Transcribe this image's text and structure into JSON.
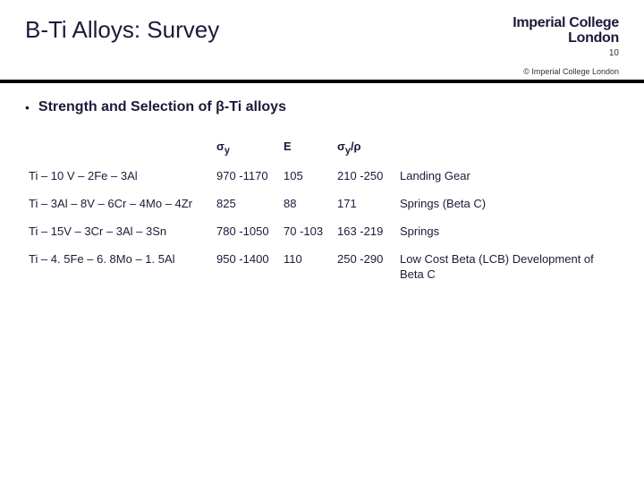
{
  "header": {
    "title": "B-Ti Alloys: Survey",
    "logo_line1": "Imperial College",
    "logo_line2": "London",
    "page_number": "10",
    "copyright": "© Imperial College London"
  },
  "subheading": {
    "bullet": "•",
    "text": "Strength and Selection of β-Ti alloys"
  },
  "table": {
    "columns": {
      "alloy": "",
      "sigma_y": "σ",
      "sigma_y_sub": "y",
      "E": "E",
      "ratio": "σ",
      "ratio_sub": "y",
      "ratio_suffix": "/ρ",
      "application": ""
    },
    "rows": [
      {
        "alloy": "Ti – 10 V – 2Fe – 3Al",
        "sigma_y": "970 -1170",
        "E": "105",
        "ratio": "210 -250",
        "application": "Landing Gear"
      },
      {
        "alloy": "Ti – 3Al – 8V – 6Cr – 4Mo – 4Zr",
        "sigma_y": "825",
        "E": "88",
        "ratio": "171",
        "application": "Springs (Beta C)"
      },
      {
        "alloy": "Ti – 15V – 3Cr – 3Al – 3Sn",
        "sigma_y": "780 -1050",
        "E": "70 -103",
        "ratio": "163 -219",
        "application": "Springs"
      },
      {
        "alloy": "Ti – 4. 5Fe – 6. 8Mo – 1. 5Al",
        "sigma_y": "950 -1400",
        "E": "110",
        "ratio": "250 -290",
        "application": "Low Cost Beta (LCB) Development of Beta C"
      }
    ]
  },
  "style": {
    "title_color": "#1a1a3a",
    "text_color": "#1a1a3a",
    "divider_color": "#000000",
    "background": "#ffffff"
  }
}
